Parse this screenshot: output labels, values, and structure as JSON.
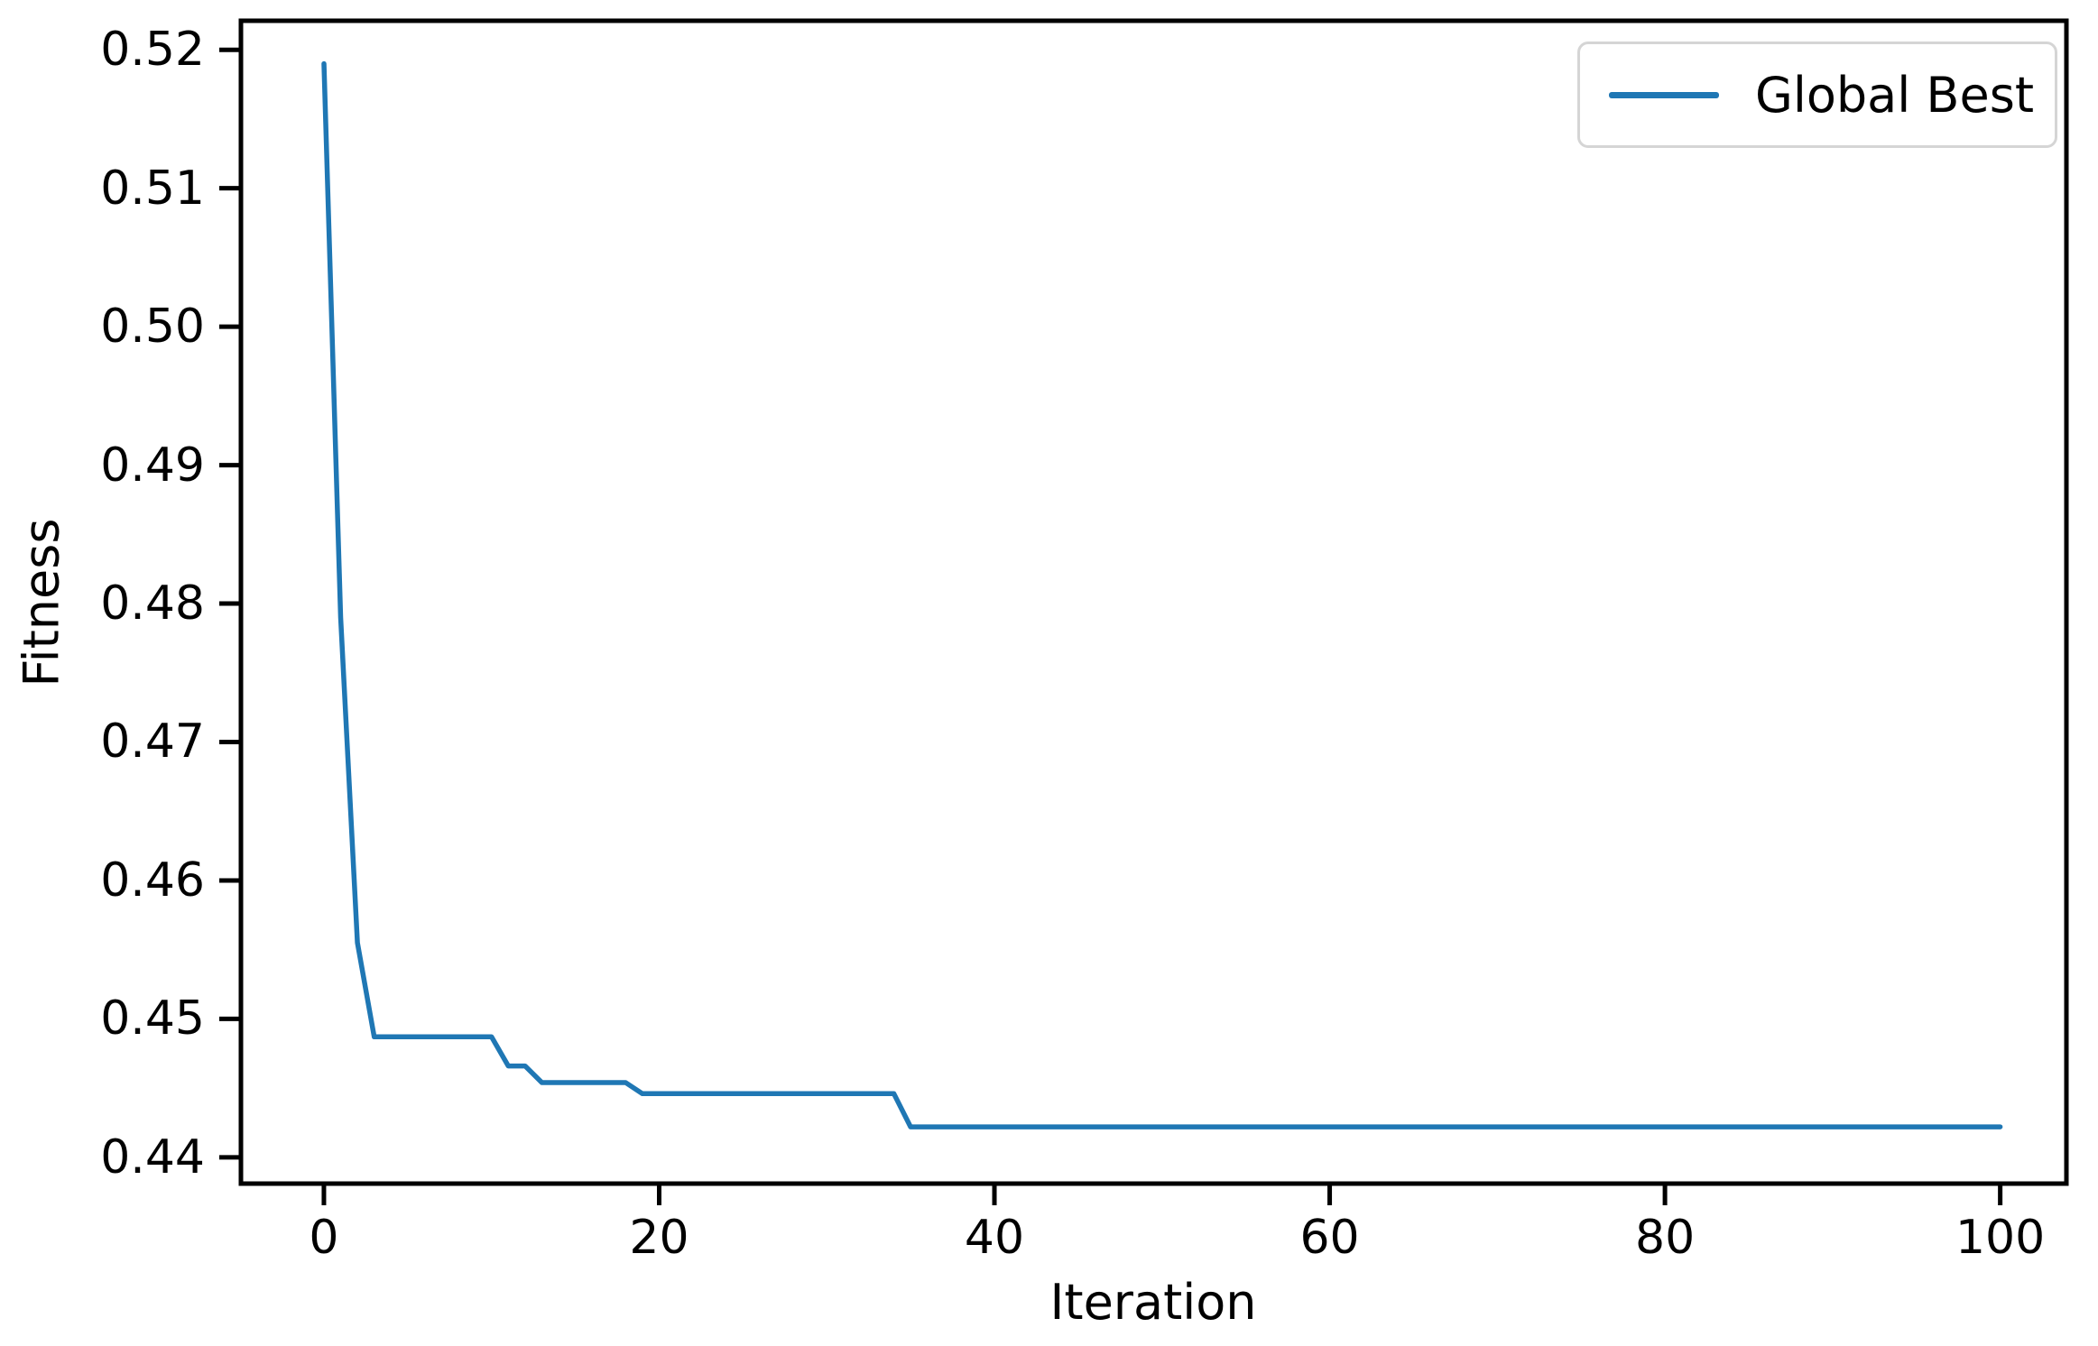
{
  "figure": {
    "background": "#ffffff"
  },
  "chart_data": {
    "type": "line",
    "title": "",
    "xlabel": "Iteration",
    "ylabel": "Fitness",
    "grid": false,
    "x_start": 0,
    "x_step": 1,
    "xlim": [
      -4.95,
      103.95
    ],
    "ylim": [
      0.4381,
      0.5221
    ],
    "xticks": [
      0,
      20,
      40,
      60,
      80,
      100
    ],
    "xtick_labels": [
      "0",
      "20",
      "40",
      "60",
      "80",
      "100"
    ],
    "yticks": [
      0.44,
      0.45,
      0.46,
      0.47,
      0.48,
      0.49,
      0.5,
      0.51,
      0.52
    ],
    "ytick_labels": [
      "0.44",
      "0.45",
      "0.46",
      "0.47",
      "0.48",
      "0.49",
      "0.50",
      "0.51",
      "0.52"
    ],
    "axis_color": "#000000",
    "text_color": "#000000",
    "legend": {
      "position": "upper right",
      "entries": [
        "Global Best"
      ],
      "border_color": "#d5d5d5"
    },
    "series": [
      {
        "name": "Global Best",
        "color": "#1f77b4",
        "values": [
          0.519,
          0.479,
          0.4555,
          0.4487,
          0.4487,
          0.4487,
          0.4487,
          0.4487,
          0.4487,
          0.4487,
          0.4487,
          0.4466,
          0.4466,
          0.4454,
          0.4454,
          0.4454,
          0.4454,
          0.4454,
          0.4454,
          0.4446,
          0.4446,
          0.4446,
          0.4446,
          0.4446,
          0.4446,
          0.4446,
          0.4446,
          0.4446,
          0.4446,
          0.4446,
          0.4446,
          0.4446,
          0.4446,
          0.4446,
          0.4446,
          0.4422,
          0.4422,
          0.4422,
          0.4422,
          0.4422,
          0.4422,
          0.4422,
          0.4422,
          0.4422,
          0.4422,
          0.4422,
          0.4422,
          0.4422,
          0.4422,
          0.4422,
          0.4422,
          0.4422,
          0.4422,
          0.4422,
          0.4422,
          0.4422,
          0.4422,
          0.4422,
          0.4422,
          0.4422,
          0.4422,
          0.4422,
          0.4422,
          0.4422,
          0.4422,
          0.4422,
          0.4422,
          0.4422,
          0.4422,
          0.4422,
          0.4422,
          0.4422,
          0.4422,
          0.4422,
          0.4422,
          0.4422,
          0.4422,
          0.4422,
          0.4422,
          0.4422,
          0.4422,
          0.4422,
          0.4422,
          0.4422,
          0.4422,
          0.4422,
          0.4422,
          0.4422,
          0.4422,
          0.4422,
          0.4422,
          0.4422,
          0.4422,
          0.4422,
          0.4422,
          0.4422,
          0.4422,
          0.4422,
          0.4422,
          0.4422,
          0.4422
        ]
      }
    ]
  }
}
